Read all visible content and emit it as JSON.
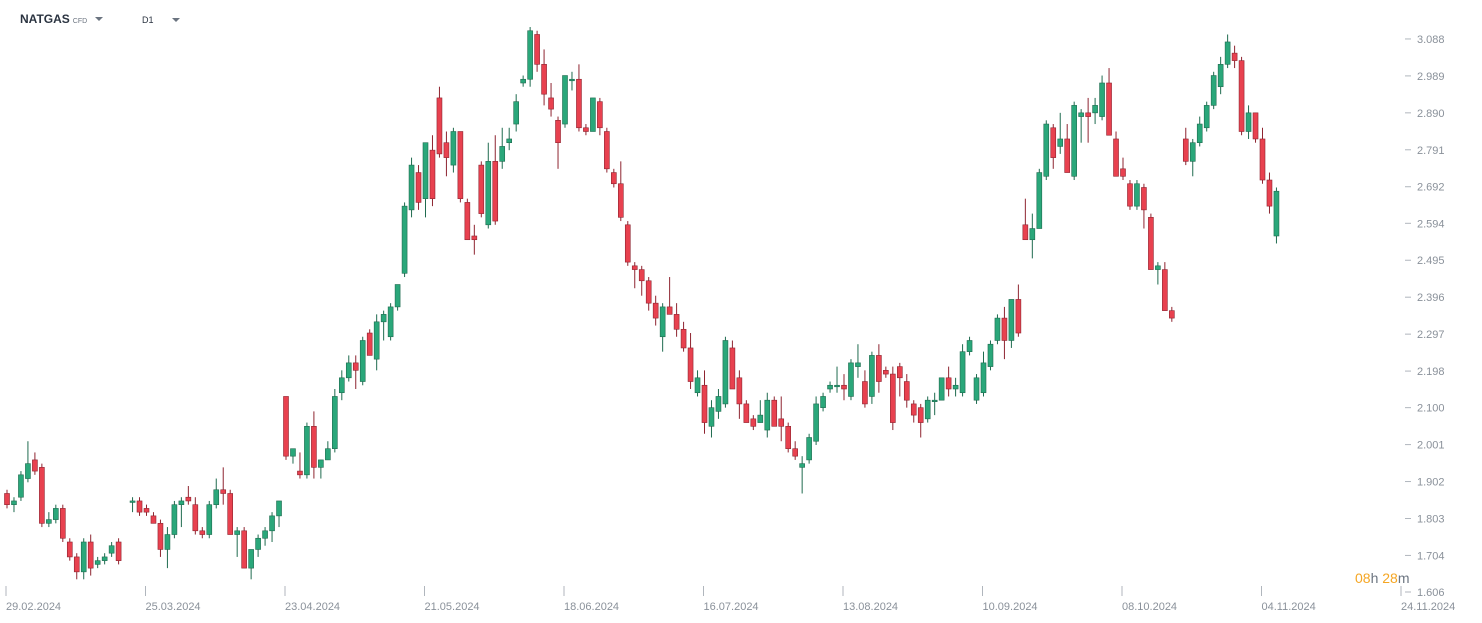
{
  "toolbar": {
    "symbol": "NATGAS",
    "symbol_type": "CFD",
    "timeframe": "D1"
  },
  "countdown": {
    "hours": "08",
    "h_unit": "h",
    "minutes": "28",
    "m_unit": "m"
  },
  "colors": {
    "up": "#2aa77a",
    "down": "#e8414f",
    "grid": "#e6e9ee",
    "axis_text": "#8a919a"
  },
  "chart_data": {
    "type": "candlestick",
    "title": "",
    "xlabel": "",
    "ylabel": "",
    "ylim": [
      1.606,
      3.13
    ],
    "y_ticks": [
      "3.088",
      "2.989",
      "2.890",
      "2.791",
      "2.692",
      "2.594",
      "2.495",
      "2.396",
      "2.297",
      "2.198",
      "2.100",
      "2.001",
      "1.902",
      "1.803",
      "1.704",
      "1.606"
    ],
    "x_ticks": [
      {
        "label": "29.02.2024",
        "index": 0
      },
      {
        "label": "25.03.2024",
        "index": 20
      },
      {
        "label": "23.04.2024",
        "index": 40
      },
      {
        "label": "21.05.2024",
        "index": 60
      },
      {
        "label": "18.06.2024",
        "index": 80
      },
      {
        "label": "16.07.2024",
        "index": 100
      },
      {
        "label": "13.08.2024",
        "index": 120
      },
      {
        "label": "10.09.2024",
        "index": 140
      },
      {
        "label": "08.10.2024",
        "index": 160
      },
      {
        "label": "04.11.2024",
        "index": 180
      },
      {
        "label": "24.11.2024",
        "index": 200
      }
    ],
    "candles": [
      [
        0,
        1.87,
        1.88,
        1.83,
        1.84
      ],
      [
        1,
        1.84,
        1.86,
        1.82,
        1.85
      ],
      [
        2,
        1.86,
        1.93,
        1.85,
        1.92
      ],
      [
        3,
        1.91,
        2.01,
        1.9,
        1.95
      ],
      [
        4,
        1.96,
        1.98,
        1.92,
        1.93
      ],
      [
        5,
        1.94,
        1.95,
        1.78,
        1.79
      ],
      [
        6,
        1.79,
        1.82,
        1.78,
        1.8
      ],
      [
        7,
        1.8,
        1.84,
        1.79,
        1.83
      ],
      [
        8,
        1.83,
        1.84,
        1.74,
        1.75
      ],
      [
        9,
        1.74,
        1.75,
        1.69,
        1.7
      ],
      [
        10,
        1.7,
        1.71,
        1.64,
        1.66
      ],
      [
        11,
        1.66,
        1.75,
        1.64,
        1.74
      ],
      [
        12,
        1.74,
        1.76,
        1.65,
        1.67
      ],
      [
        13,
        1.68,
        1.7,
        1.67,
        1.69
      ],
      [
        14,
        1.69,
        1.71,
        1.68,
        1.7
      ],
      [
        15,
        1.71,
        1.74,
        1.7,
        1.73
      ],
      [
        16,
        1.74,
        1.75,
        1.68,
        1.69
      ],
      [
        17,
        null,
        null,
        null,
        null
      ],
      [
        18,
        1.85,
        1.86,
        1.82,
        1.85
      ],
      [
        19,
        1.85,
        1.86,
        1.81,
        1.82
      ],
      [
        20,
        1.83,
        1.84,
        1.81,
        1.82
      ],
      [
        21,
        1.81,
        1.82,
        1.79,
        1.79
      ],
      [
        22,
        1.79,
        1.8,
        1.7,
        1.72
      ],
      [
        23,
        1.72,
        1.78,
        1.67,
        1.76
      ],
      [
        24,
        1.76,
        1.85,
        1.75,
        1.84
      ],
      [
        25,
        1.84,
        1.86,
        1.78,
        1.85
      ],
      [
        26,
        1.86,
        1.89,
        1.84,
        1.85
      ],
      [
        27,
        1.84,
        1.86,
        1.76,
        1.77
      ],
      [
        28,
        1.77,
        1.78,
        1.75,
        1.76
      ],
      [
        29,
        1.76,
        1.85,
        1.75,
        1.84
      ],
      [
        30,
        1.84,
        1.91,
        1.83,
        1.88
      ],
      [
        31,
        1.88,
        1.94,
        1.84,
        1.87
      ],
      [
        32,
        1.87,
        1.88,
        1.76,
        1.76
      ],
      [
        33,
        1.76,
        1.78,
        1.7,
        1.77
      ],
      [
        34,
        1.77,
        1.78,
        1.67,
        1.67
      ],
      [
        35,
        1.67,
        1.72,
        1.64,
        1.72
      ],
      [
        36,
        1.72,
        1.76,
        1.7,
        1.75
      ],
      [
        37,
        1.75,
        1.78,
        1.73,
        1.77
      ],
      [
        38,
        1.77,
        1.82,
        1.74,
        1.81
      ],
      [
        39,
        1.81,
        1.85,
        1.78,
        1.85
      ],
      [
        40,
        2.13,
        2.13,
        1.96,
        1.97
      ],
      [
        41,
        1.97,
        1.99,
        1.95,
        1.99
      ],
      [
        42,
        1.93,
        1.98,
        1.91,
        1.92
      ],
      [
        43,
        1.92,
        2.06,
        1.91,
        2.05
      ],
      [
        44,
        2.05,
        2.09,
        1.91,
        1.94
      ],
      [
        45,
        1.94,
        1.96,
        1.91,
        1.96
      ],
      [
        46,
        1.96,
        2.01,
        1.96,
        1.99
      ],
      [
        47,
        1.99,
        2.15,
        1.98,
        2.13
      ],
      [
        48,
        2.14,
        2.2,
        2.12,
        2.18
      ],
      [
        49,
        2.18,
        2.24,
        2.17,
        2.22
      ],
      [
        50,
        2.22,
        2.24,
        2.15,
        2.2
      ],
      [
        51,
        2.17,
        2.29,
        2.16,
        2.28
      ],
      [
        52,
        2.3,
        2.31,
        2.24,
        2.24
      ],
      [
        53,
        2.23,
        2.35,
        2.2,
        2.33
      ],
      [
        54,
        2.33,
        2.36,
        2.28,
        2.35
      ],
      [
        55,
        2.29,
        2.38,
        2.28,
        2.37
      ],
      [
        56,
        2.37,
        2.43,
        2.36,
        2.43
      ],
      [
        57,
        2.46,
        2.65,
        2.45,
        2.64
      ],
      [
        58,
        2.63,
        2.77,
        2.61,
        2.75
      ],
      [
        59,
        2.73,
        2.75,
        2.63,
        2.65
      ],
      [
        60,
        2.66,
        2.81,
        2.61,
        2.81
      ],
      [
        61,
        2.79,
        2.83,
        2.64,
        2.66
      ],
      [
        62,
        2.93,
        2.96,
        2.77,
        2.78
      ],
      [
        63,
        2.81,
        2.84,
        2.72,
        2.77
      ],
      [
        64,
        2.75,
        2.85,
        2.73,
        2.84
      ],
      [
        65,
        2.84,
        2.84,
        2.65,
        2.66
      ],
      [
        66,
        2.65,
        2.66,
        2.55,
        2.55
      ],
      [
        67,
        2.56,
        2.59,
        2.51,
        2.55
      ],
      [
        68,
        2.75,
        2.76,
        2.61,
        2.62
      ],
      [
        69,
        2.59,
        2.81,
        2.58,
        2.76
      ],
      [
        70,
        2.76,
        2.83,
        2.59,
        2.6
      ],
      [
        71,
        2.76,
        2.85,
        2.74,
        2.8
      ],
      [
        72,
        2.81,
        2.85,
        2.79,
        2.82
      ],
      [
        73,
        2.86,
        2.94,
        2.84,
        2.92
      ],
      [
        74,
        2.97,
        2.99,
        2.96,
        2.98
      ],
      [
        75,
        2.98,
        3.12,
        2.96,
        3.11
      ],
      [
        76,
        3.1,
        3.11,
        3.0,
        3.02
      ],
      [
        77,
        3.02,
        3.06,
        2.91,
        2.94
      ],
      [
        78,
        2.93,
        2.97,
        2.88,
        2.9
      ],
      [
        79,
        2.87,
        2.88,
        2.74,
        2.81
      ],
      [
        80,
        2.86,
        2.99,
        2.85,
        2.99
      ],
      [
        81,
        2.98,
        3.0,
        2.95,
        2.98
      ],
      [
        82,
        2.98,
        3.02,
        2.84,
        2.85
      ],
      [
        83,
        2.85,
        2.86,
        2.83,
        2.84
      ],
      [
        84,
        2.84,
        2.93,
        2.84,
        2.93
      ],
      [
        85,
        2.92,
        2.93,
        2.83,
        2.85
      ],
      [
        86,
        2.84,
        2.85,
        2.73,
        2.74
      ],
      [
        87,
        2.73,
        2.74,
        2.69,
        2.7
      ],
      [
        88,
        2.7,
        2.76,
        2.6,
        2.61
      ],
      [
        89,
        2.59,
        2.6,
        2.48,
        2.49
      ],
      [
        90,
        2.48,
        2.49,
        2.42,
        2.47
      ],
      [
        91,
        2.47,
        2.48,
        2.4,
        2.44
      ],
      [
        92,
        2.44,
        2.45,
        2.36,
        2.38
      ],
      [
        93,
        2.38,
        2.4,
        2.32,
        2.34
      ],
      [
        94,
        2.29,
        2.38,
        2.25,
        2.37
      ],
      [
        95,
        2.37,
        2.45,
        2.36,
        2.35
      ],
      [
        96,
        2.35,
        2.38,
        2.29,
        2.31
      ],
      [
        97,
        2.31,
        2.33,
        2.25,
        2.26
      ],
      [
        98,
        2.26,
        2.3,
        2.15,
        2.17
      ],
      [
        99,
        2.14,
        2.2,
        2.13,
        2.18
      ],
      [
        100,
        2.16,
        2.2,
        2.03,
        2.06
      ],
      [
        101,
        2.05,
        2.12,
        2.02,
        2.1
      ],
      [
        102,
        2.09,
        2.15,
        2.07,
        2.13
      ],
      [
        103,
        2.11,
        2.29,
        2.1,
        2.28
      ],
      [
        104,
        2.26,
        2.28,
        2.15,
        2.15
      ],
      [
        105,
        2.18,
        2.2,
        2.07,
        2.11
      ],
      [
        106,
        2.11,
        2.12,
        2.06,
        2.06
      ],
      [
        107,
        2.07,
        2.08,
        2.04,
        2.05
      ],
      [
        108,
        2.06,
        2.12,
        2.06,
        2.08
      ],
      [
        109,
        2.04,
        2.14,
        2.02,
        2.12
      ],
      [
        110,
        2.12,
        2.13,
        2.05,
        2.05
      ],
      [
        111,
        2.07,
        2.13,
        2.01,
        2.05
      ],
      [
        112,
        2.05,
        2.06,
        1.98,
        1.99
      ],
      [
        113,
        1.99,
        2.01,
        1.96,
        1.97
      ],
      [
        114,
        1.94,
        1.97,
        1.87,
        1.95
      ],
      [
        115,
        1.96,
        2.03,
        1.95,
        2.02
      ],
      [
        116,
        2.01,
        2.13,
        2.0,
        2.11
      ],
      [
        117,
        2.1,
        2.14,
        2.09,
        2.13
      ],
      [
        118,
        2.15,
        2.17,
        2.14,
        2.16
      ],
      [
        119,
        2.16,
        2.21,
        2.14,
        2.16
      ],
      [
        120,
        2.16,
        2.19,
        2.12,
        2.15
      ],
      [
        121,
        2.13,
        2.23,
        2.12,
        2.22
      ],
      [
        122,
        2.21,
        2.27,
        2.18,
        2.22
      ],
      [
        123,
        2.17,
        2.2,
        2.1,
        2.11
      ],
      [
        124,
        2.13,
        2.25,
        2.11,
        2.24
      ],
      [
        125,
        2.24,
        2.27,
        2.14,
        2.17
      ],
      [
        126,
        2.2,
        2.21,
        2.18,
        2.19
      ],
      [
        127,
        2.19,
        2.21,
        2.04,
        2.06
      ],
      [
        128,
        2.21,
        2.22,
        2.13,
        2.18
      ],
      [
        129,
        2.17,
        2.19,
        2.1,
        2.12
      ],
      [
        130,
        2.11,
        2.12,
        2.06,
        2.08
      ],
      [
        131,
        2.1,
        2.11,
        2.02,
        2.06
      ],
      [
        132,
        2.07,
        2.13,
        2.06,
        2.12
      ],
      [
        133,
        2.12,
        2.14,
        2.08,
        2.12
      ],
      [
        134,
        2.12,
        2.18,
        2.12,
        2.18
      ],
      [
        135,
        2.18,
        2.21,
        2.13,
        2.15
      ],
      [
        136,
        2.15,
        2.18,
        2.13,
        2.16
      ],
      [
        137,
        2.14,
        2.27,
        2.13,
        2.25
      ],
      [
        138,
        2.25,
        2.29,
        2.24,
        2.28
      ],
      [
        139,
        2.12,
        2.19,
        2.11,
        2.18
      ],
      [
        140,
        2.14,
        2.25,
        2.13,
        2.22
      ],
      [
        141,
        2.21,
        2.28,
        2.2,
        2.27
      ],
      [
        142,
        2.28,
        2.35,
        2.27,
        2.34
      ],
      [
        143,
        2.34,
        2.37,
        2.23,
        2.28
      ],
      [
        144,
        2.28,
        2.39,
        2.26,
        2.39
      ],
      [
        145,
        2.39,
        2.43,
        2.29,
        2.3
      ],
      [
        146,
        2.59,
        2.66,
        2.55,
        2.55
      ],
      [
        147,
        2.55,
        2.62,
        2.5,
        2.58
      ],
      [
        148,
        2.58,
        2.74,
        2.58,
        2.73
      ],
      [
        149,
        2.72,
        2.87,
        2.71,
        2.86
      ],
      [
        150,
        2.85,
        2.86,
        2.74,
        2.77
      ],
      [
        151,
        2.8,
        2.89,
        2.78,
        2.82
      ],
      [
        152,
        2.82,
        2.86,
        2.73,
        2.73
      ],
      [
        153,
        2.72,
        2.92,
        2.71,
        2.91
      ],
      [
        154,
        2.88,
        2.9,
        2.81,
        2.89
      ],
      [
        155,
        2.89,
        2.93,
        2.81,
        2.88
      ],
      [
        156,
        2.89,
        2.93,
        2.86,
        2.91
      ],
      [
        157,
        2.88,
        2.99,
        2.87,
        2.97
      ],
      [
        158,
        2.97,
        3.01,
        2.83,
        2.83
      ],
      [
        159,
        2.82,
        2.84,
        2.72,
        2.72
      ],
      [
        160,
        2.74,
        2.77,
        2.71,
        2.72
      ],
      [
        161,
        2.7,
        2.71,
        2.63,
        2.64
      ],
      [
        162,
        2.64,
        2.71,
        2.63,
        2.7
      ],
      [
        163,
        2.69,
        2.7,
        2.58,
        2.63
      ],
      [
        164,
        2.61,
        2.62,
        2.47,
        2.47
      ],
      [
        165,
        2.47,
        2.49,
        2.43,
        2.48
      ],
      [
        166,
        2.47,
        2.49,
        2.36,
        2.36
      ],
      [
        167,
        2.36,
        2.37,
        2.33,
        2.34
      ],
      [
        168,
        null,
        null,
        null,
        null
      ],
      [
        169,
        2.82,
        2.85,
        2.75,
        2.76
      ],
      [
        170,
        2.76,
        2.82,
        2.72,
        2.81
      ],
      [
        171,
        2.81,
        2.88,
        2.8,
        2.86
      ],
      [
        172,
        2.85,
        2.92,
        2.84,
        2.91
      ],
      [
        173,
        2.91,
        3.0,
        2.9,
        2.99
      ],
      [
        174,
        2.96,
        3.04,
        2.94,
        3.02
      ],
      [
        175,
        3.02,
        3.1,
        3.01,
        3.08
      ],
      [
        176,
        3.05,
        3.07,
        3.01,
        3.03
      ],
      [
        177,
        3.03,
        3.04,
        2.83,
        2.84
      ],
      [
        178,
        2.84,
        2.91,
        2.82,
        2.89
      ],
      [
        179,
        2.89,
        2.89,
        2.81,
        2.82
      ],
      [
        180,
        2.82,
        2.85,
        2.7,
        2.71
      ],
      [
        181,
        2.71,
        2.73,
        2.62,
        2.64
      ],
      [
        182,
        2.56,
        2.69,
        2.54,
        2.68
      ]
    ]
  }
}
